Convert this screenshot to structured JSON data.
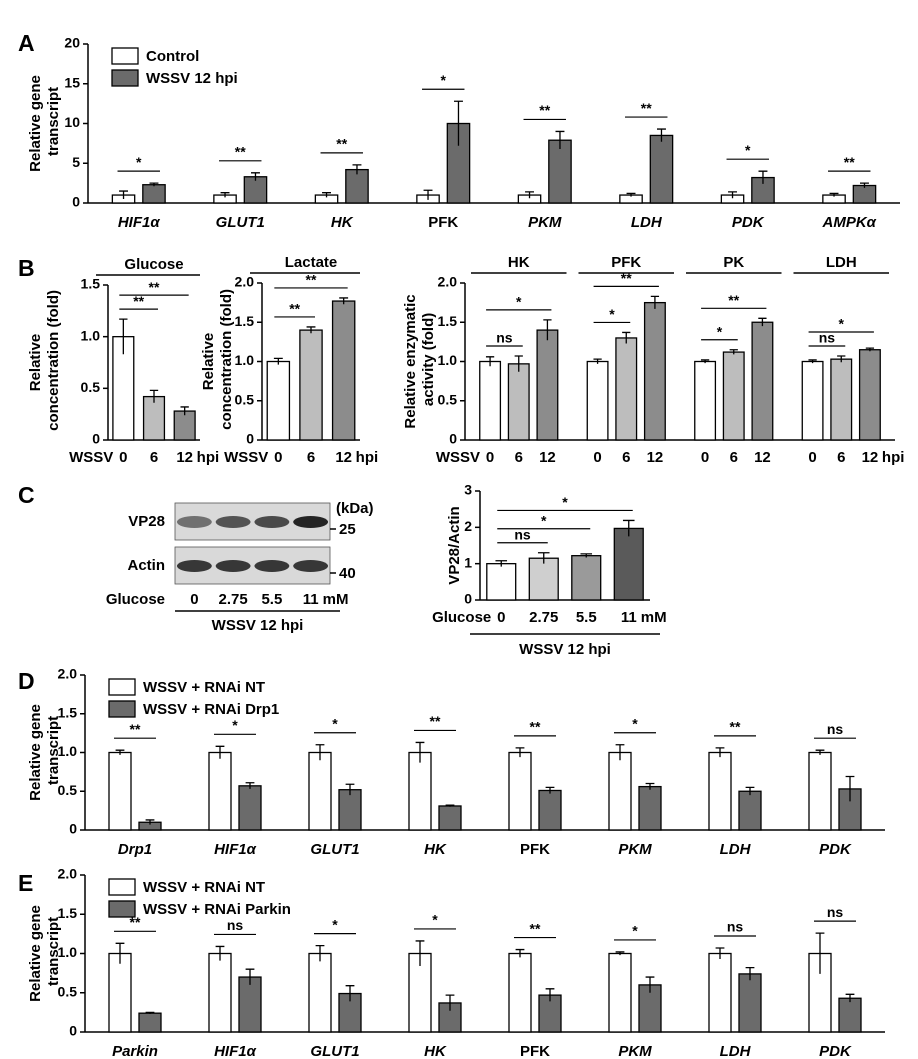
{
  "panel_labels": [
    "A",
    "B",
    "C",
    "D",
    "E"
  ],
  "chart_data": [
    {
      "type": "bar",
      "ylabel": "Relative gene transcript",
      "categories": [
        "HIF1α",
        "GLUT1",
        "HK",
        "PFK",
        "PKM",
        "LDH",
        "PDK",
        "AMPKα"
      ],
      "italic": [
        true,
        true,
        true,
        false,
        true,
        true,
        true,
        true
      ],
      "series": [
        {
          "name": "Control",
          "color": "#ffffff",
          "values": [
            1,
            1,
            1,
            1,
            1,
            1,
            1,
            1
          ],
          "errors": [
            0.5,
            0.3,
            0.3,
            0.6,
            0.4,
            0.2,
            0.4,
            0.2
          ]
        },
        {
          "name": "WSSV 12 hpi",
          "color": "#6b6b6b",
          "values": [
            2.3,
            3.3,
            4.2,
            10,
            7.9,
            8.5,
            3.2,
            2.2
          ],
          "errors": [
            0.2,
            0.5,
            0.6,
            2.8,
            1.1,
            0.8,
            0.8,
            0.3
          ]
        }
      ],
      "significance": [
        "*",
        "**",
        "**",
        "*",
        "**",
        "**",
        "*",
        "**"
      ],
      "ylim": [
        0,
        20
      ],
      "yticks": [
        0,
        5,
        10,
        15,
        20
      ],
      "legend": "top-left"
    },
    {
      "type": "bar",
      "title": "Glucose",
      "ylabel": "Relative concentration (fold)",
      "x_prefix": "WSSV",
      "categories": [
        "0",
        "6",
        "12"
      ],
      "x_unit": "hpi",
      "values": [
        1.0,
        0.42,
        0.28
      ],
      "errors": [
        0.17,
        0.06,
        0.04
      ],
      "colors": [
        "#ffffff",
        "#bdbdbd",
        "#8c8c8c"
      ],
      "significance": [
        "**",
        "**"
      ],
      "ylim": [
        0,
        1.5
      ],
      "yticks": [
        0,
        0.5,
        {
          "value": 1,
          "label": "1.0"
        },
        1.5
      ]
    },
    {
      "type": "bar",
      "title": "Lactate",
      "ylabel": "Relative concentration (fold)",
      "x_prefix": "WSSV",
      "categories": [
        "0",
        "6",
        "12"
      ],
      "x_unit": "hpi",
      "values": [
        1.0,
        1.4,
        1.77
      ],
      "errors": [
        0.04,
        0.04,
        0.04
      ],
      "colors": [
        "#ffffff",
        "#bdbdbd",
        "#8c8c8c"
      ],
      "significance": [
        "**",
        "**"
      ],
      "ylim": [
        0,
        2
      ],
      "yticks": [
        0,
        0.5,
        {
          "value": 1,
          "label": "1.0"
        },
        1.5,
        {
          "value": 2,
          "label": "2.0"
        }
      ]
    },
    {
      "type": "bar",
      "ylabel": "Relative enzymatic activity (fold)",
      "category_position": "top",
      "x_prefix": "WSSV",
      "categories": [
        "HK",
        "PFK",
        "PK",
        "LDH"
      ],
      "x_unit": "hpi",
      "series": [
        {
          "name": "0",
          "color": "#ffffff",
          "values": [
            1,
            1,
            1,
            1
          ],
          "errors": [
            0.06,
            0.03,
            0.02,
            0.02
          ]
        },
        {
          "name": "6",
          "color": "#bdbdbd",
          "values": [
            0.97,
            1.3,
            1.12,
            1.03
          ],
          "errors": [
            0.1,
            0.07,
            0.03,
            0.04
          ]
        },
        {
          "name": "12",
          "color": "#8c8c8c",
          "values": [
            1.4,
            1.75,
            1.5,
            1.15
          ],
          "errors": [
            0.13,
            0.08,
            0.05,
            0.02
          ]
        }
      ],
      "significance": [
        [
          "ns",
          "*"
        ],
        [
          "*",
          "**"
        ],
        [
          "*",
          "**"
        ],
        [
          "ns",
          "*"
        ]
      ],
      "ylim": [
        0,
        2
      ],
      "yticks": [
        0,
        0.5,
        {
          "value": 1,
          "label": "1.0"
        },
        1.5,
        {
          "value": 2,
          "label": "2.0"
        }
      ]
    },
    {
      "type": "bar",
      "ylabel": "VP28/Actin",
      "x_prefix": "Glucose",
      "categories": [
        "0",
        "2.75",
        "5.5",
        "11"
      ],
      "x_unit": "mM",
      "caption": "WSSV 12 hpi",
      "values": [
        1.0,
        1.15,
        1.22,
        1.97
      ],
      "errors": [
        0.08,
        0.15,
        0.05,
        0.22
      ],
      "colors": [
        "#ffffff",
        "#cfcfcf",
        "#9a9a9a",
        "#5a5a5a"
      ],
      "significance": [
        "ns",
        "*",
        "*"
      ],
      "ylim": [
        0,
        3
      ],
      "yticks": [
        0,
        1,
        2,
        3
      ]
    },
    {
      "type": "bar",
      "ylabel": "Relative gene transcript",
      "categories": [
        "Drp1",
        "HIF1α",
        "GLUT1",
        "HK",
        "PFK",
        "PKM",
        "LDH",
        "PDK"
      ],
      "italic": [
        true,
        true,
        true,
        true,
        false,
        true,
        true,
        true
      ],
      "series": [
        {
          "name": "WSSV + RNAi NT",
          "color": "#ffffff",
          "values": [
            1,
            1,
            1,
            1,
            1,
            1,
            1,
            1
          ],
          "errors": [
            0.03,
            0.08,
            0.1,
            0.13,
            0.06,
            0.1,
            0.06,
            0.03
          ]
        },
        {
          "name": "WSSV + RNAi Drp1",
          "color": "#6b6b6b",
          "values": [
            0.1,
            0.57,
            0.52,
            0.31,
            0.51,
            0.56,
            0.5,
            0.53
          ],
          "errors": [
            0.03,
            0.04,
            0.07,
            0.01,
            0.04,
            0.04,
            0.05,
            0.16
          ]
        }
      ],
      "significance": [
        "**",
        "*",
        "*",
        "**",
        "**",
        "*",
        "**",
        "ns"
      ],
      "ylim": [
        0,
        2
      ],
      "yticks": [
        0,
        0.5,
        {
          "value": 1,
          "label": "1.0"
        },
        1.5,
        {
          "value": 2,
          "label": "2.0"
        }
      ],
      "legend": "top-left"
    },
    {
      "type": "bar",
      "ylabel": "Relative gene transcript",
      "categories": [
        "Parkin",
        "HIF1α",
        "GLUT1",
        "HK",
        "PFK",
        "PKM",
        "LDH",
        "PDK"
      ],
      "italic": [
        true,
        true,
        true,
        true,
        false,
        true,
        true,
        true
      ],
      "series": [
        {
          "name": "WSSV + RNAi NT",
          "color": "#ffffff",
          "values": [
            1,
            1,
            1,
            1,
            1,
            1,
            1,
            1
          ],
          "errors": [
            0.13,
            0.09,
            0.1,
            0.16,
            0.05,
            0.02,
            0.07,
            0.26
          ]
        },
        {
          "name": "WSSV + RNAi Parkin",
          "color": "#6b6b6b",
          "values": [
            0.24,
            0.7,
            0.49,
            0.37,
            0.47,
            0.6,
            0.74,
            0.43
          ],
          "errors": [
            0.01,
            0.1,
            0.1,
            0.1,
            0.08,
            0.1,
            0.08,
            0.05
          ]
        }
      ],
      "significance": [
        "**",
        "ns",
        "*",
        "*",
        "**",
        "*",
        "ns",
        "ns"
      ],
      "ylim": [
        0,
        2
      ],
      "yticks": [
        0,
        0.5,
        {
          "value": 1,
          "label": "1.0"
        },
        1.5,
        {
          "value": 2,
          "label": "2.0"
        }
      ],
      "legend": "top-left"
    }
  ],
  "blot": {
    "bands": [
      "VP28",
      "Actin"
    ],
    "mw_unit": "(kDa)",
    "mw": [
      25,
      40
    ],
    "x_prefix": "Glucose",
    "lanes": [
      "0",
      "2.75",
      "5.5",
      "11"
    ],
    "x_unit": "mM",
    "caption": "WSSV 12 hpi"
  }
}
